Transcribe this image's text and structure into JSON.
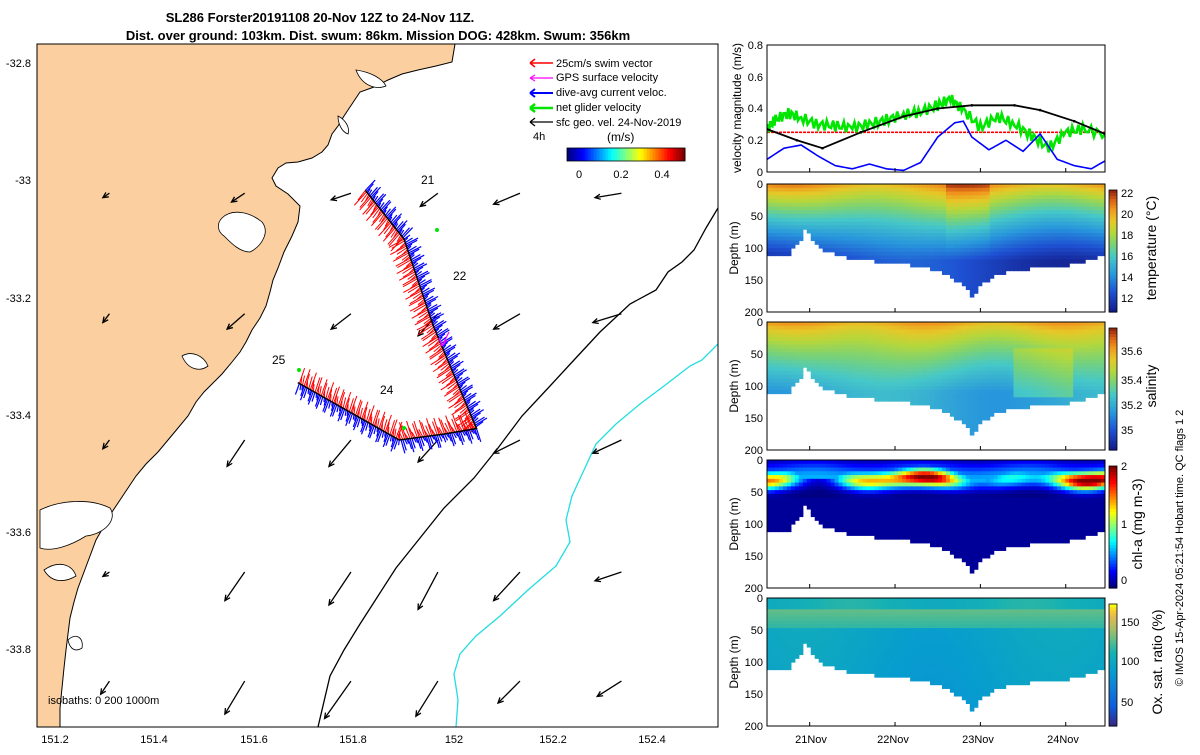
{
  "title": {
    "line1": "SL286 Forster20191108 20-Nov 12Z to 24-Nov 11Z.",
    "line2": "Dist. over ground: 103km. Dist. swum: 86km. Mission DOG: 428km. Swum: 356km"
  },
  "footer": "© IMOS 15-Apr-2024 05:21:54 Hobart time. QC flags 1  2",
  "colors": {
    "land": "#fbcf9f",
    "swim": "#ff0000",
    "gps": "#ff00ff",
    "dive_current": "#0000ff",
    "net_glider": "#00e600",
    "geo_vel": "#000000",
    "isobath_200": "#000000",
    "isobath_1000": "#22dde0"
  },
  "chart_data": [
    {
      "type": "map",
      "x_ticks": [
        "151.2",
        "151.4",
        "151.6",
        "151.8",
        "152",
        "152.2",
        "152.4"
      ],
      "y_ticks": [
        "-32.8",
        "-33",
        "-33.2",
        "-33.4",
        "-33.6",
        "-33.8"
      ],
      "xlim": [
        151.14,
        152.55
      ],
      "ylim": [
        -33.93,
        -32.74
      ],
      "legend": [
        {
          "label": "25cm/s swim vector",
          "color": "#ff0000"
        },
        {
          "label": "GPS surface velocity",
          "color": "#ff00ff"
        },
        {
          "label": "dive-avg current veloc.",
          "color": "#0000ff"
        },
        {
          "label": "net glider velocity",
          "color": "#00e600"
        },
        {
          "label": "sfc geo. vel. 24-Nov-2019",
          "color": "#000000"
        }
      ],
      "colorbar": {
        "title": "(m/s)",
        "ticks": [
          "0",
          "0.2",
          "0.4"
        ],
        "range": [
          0,
          0.5
        ]
      },
      "time_label": "4h",
      "day_labels": [
        "21",
        "22",
        "24",
        "25"
      ],
      "isobaths_label": "isobaths: 0   200   1000m",
      "track": [
        [
          151.82,
          -32.995
        ],
        [
          151.9,
          -33.08
        ],
        [
          151.96,
          -33.23
        ],
        [
          152.05,
          -33.41
        ],
        [
          151.98,
          -33.42
        ],
        [
          151.89,
          -33.43
        ],
        [
          151.68,
          -33.33
        ]
      ],
      "geo_vectors": {
        "lons": [
          151.29,
          151.57,
          151.79,
          151.97,
          152.14,
          152.35
        ],
        "lats": [
          -33.85,
          -33.66,
          -33.43,
          -33.21,
          -33.0
        ],
        "u_ms": [
          [
            -0.04,
            -0.09,
            -0.12,
            -0.1,
            -0.1,
            -0.11
          ],
          [
            -0.03,
            -0.09,
            -0.1,
            -0.09,
            -0.12,
            -0.12
          ],
          [
            -0.03,
            -0.08,
            -0.1,
            -0.09,
            -0.12,
            -0.13
          ],
          [
            -0.03,
            -0.08,
            -0.09,
            -0.09,
            -0.12,
            -0.13
          ],
          [
            -0.03,
            -0.06,
            -0.09,
            -0.08,
            -0.12,
            -0.12
          ]
        ],
        "v_ms": [
          [
            -0.06,
            -0.15,
            -0.17,
            -0.16,
            -0.1,
            -0.07
          ],
          [
            -0.02,
            -0.13,
            -0.15,
            -0.17,
            -0.13,
            -0.04
          ],
          [
            -0.04,
            -0.12,
            -0.12,
            -0.1,
            -0.06,
            -0.06
          ],
          [
            -0.04,
            -0.07,
            -0.07,
            -0.1,
            -0.07,
            -0.04
          ],
          [
            -0.02,
            -0.04,
            -0.03,
            -0.06,
            -0.05,
            -0.02
          ]
        ]
      }
    },
    {
      "type": "line",
      "ylabel": "velocity magnitude (m/s)",
      "ylim": [
        0,
        0.8
      ],
      "y_ticks": [
        "0",
        "0.2",
        "0.4",
        "0.6",
        "0.8"
      ],
      "xlim": [
        20.5,
        24.46
      ],
      "series": [
        {
          "name": "swim",
          "color": "#ff0000",
          "x": [
            20.5,
            24.46
          ],
          "y": [
            0.25,
            0.25
          ]
        },
        {
          "name": "net glider",
          "color": "#00e600",
          "x": [
            20.5,
            20.6,
            20.75,
            20.9,
            21.1,
            21.3,
            21.5,
            21.7,
            21.9,
            22.1,
            22.3,
            22.5,
            22.65,
            22.8,
            23.0,
            23.2,
            23.4,
            23.6,
            23.8,
            24.0,
            24.2,
            24.46
          ],
          "y": [
            0.27,
            0.33,
            0.37,
            0.34,
            0.3,
            0.29,
            0.28,
            0.3,
            0.33,
            0.36,
            0.38,
            0.42,
            0.46,
            0.39,
            0.28,
            0.35,
            0.3,
            0.23,
            0.15,
            0.25,
            0.27,
            0.24
          ]
        },
        {
          "name": "dive-avg",
          "color": "#0000ff",
          "x": [
            20.5,
            20.7,
            20.9,
            21.1,
            21.3,
            21.5,
            21.7,
            21.9,
            22.1,
            22.3,
            22.5,
            22.7,
            22.8,
            22.9,
            23.1,
            23.3,
            23.5,
            23.7,
            23.9,
            24.1,
            24.3,
            24.46
          ],
          "y": [
            0.08,
            0.15,
            0.17,
            0.1,
            0.04,
            0.02,
            0.05,
            0.02,
            0.01,
            0.06,
            0.22,
            0.31,
            0.32,
            0.22,
            0.14,
            0.2,
            0.13,
            0.24,
            0.08,
            0.04,
            0.02,
            0.07
          ]
        },
        {
          "name": "geo",
          "color": "#000000",
          "x": [
            20.5,
            20.85,
            21.15,
            21.6,
            22.1,
            22.5,
            22.9,
            23.4,
            23.7,
            24.1,
            24.46
          ],
          "y": [
            0.27,
            0.2,
            0.15,
            0.25,
            0.35,
            0.4,
            0.42,
            0.42,
            0.39,
            0.32,
            0.24
          ]
        }
      ]
    },
    {
      "type": "heatmap",
      "variable": "temperature",
      "cbar_label": "temperature (°C)",
      "cbar_ticks": [
        "12",
        "14",
        "16",
        "18",
        "20",
        "22"
      ],
      "cbar_range": [
        11.2,
        23.3
      ],
      "ylabel": "Depth (m)",
      "y_ticks": [
        "0",
        "50",
        "100",
        "150",
        "200"
      ],
      "ylim": [
        200,
        0
      ],
      "surface_value": 21.5,
      "deep_value": 13.5
    },
    {
      "type": "heatmap",
      "variable": "salinity",
      "cbar_label": "salinity",
      "cbar_ticks": [
        "35",
        "35.2",
        "35.4",
        "35.6"
      ],
      "cbar_range": [
        34.86,
        35.76
      ],
      "ylabel": "Depth (m)",
      "y_ticks": [
        "0",
        "50",
        "100",
        "150",
        "200"
      ],
      "ylim": [
        200,
        0
      ],
      "surface_value": 35.62,
      "deep_value": 35.25
    },
    {
      "type": "heatmap",
      "variable": "chl-a",
      "cbar_label": "chl-a (mg m-3)",
      "cbar_ticks": [
        "0",
        "1",
        "2"
      ],
      "cbar_range": [
        0,
        2
      ],
      "ylabel": "Depth (m)",
      "y_ticks": [
        "0",
        "50",
        "100",
        "150",
        "200"
      ],
      "ylim": [
        200,
        0
      ],
      "max_depth_m": 30,
      "max_value": 2.0
    },
    {
      "type": "heatmap",
      "variable": "oxygen saturation",
      "cbar_label": "Ox. sat. ratio (%)",
      "cbar_ticks": [
        "50",
        "100",
        "150"
      ],
      "cbar_range": [
        25,
        170
      ],
      "ylabel": "Depth (m)",
      "y_ticks": [
        "0",
        "50",
        "100",
        "150",
        "200"
      ],
      "ylim": [
        200,
        0
      ],
      "surface_value": 115,
      "deep_value": 95
    }
  ],
  "time_axis": {
    "labels": [
      "21Nov",
      "22Nov",
      "23Nov",
      "24Nov"
    ],
    "values": [
      21,
      22,
      23,
      24
    ],
    "range": [
      20.5,
      24.46
    ]
  },
  "section_bottom": {
    "x": [
      20.5,
      20.75,
      20.88,
      20.95,
      21.1,
      21.5,
      21.9,
      22.3,
      22.6,
      22.82,
      22.9,
      23.0,
      23.2,
      23.6,
      24.0,
      24.3,
      24.46
    ],
    "depth": [
      113,
      110,
      90,
      70,
      100,
      118,
      122,
      128,
      140,
      160,
      178,
      158,
      140,
      132,
      128,
      118,
      110
    ]
  }
}
